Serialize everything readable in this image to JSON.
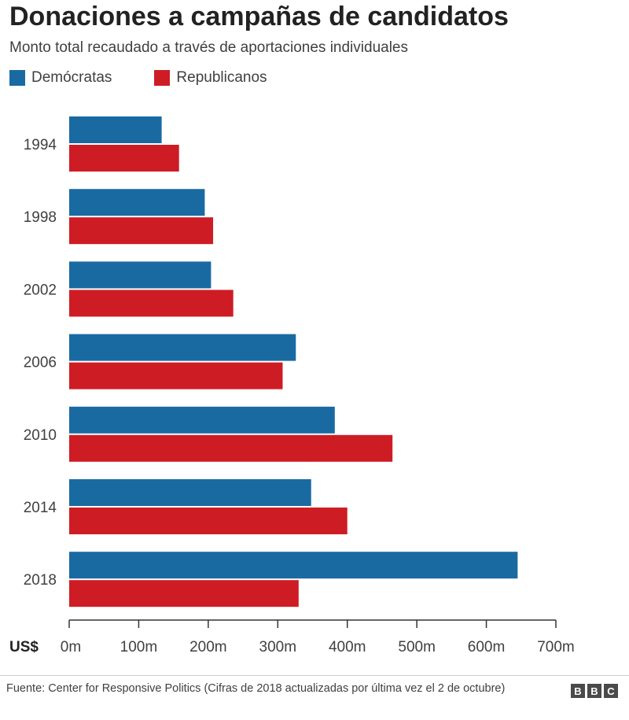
{
  "chart_data": {
    "type": "bar",
    "orientation": "horizontal",
    "title": "Donaciones a campañas de candidatos",
    "subtitle": "Monto total recaudado a través de aportaciones individuales",
    "categories": [
      "1994",
      "1998",
      "2002",
      "2006",
      "2010",
      "2014",
      "2018"
    ],
    "series": [
      {
        "name": "Demócratas",
        "color": "#1a6aa2",
        "values": [
          133,
          195,
          204,
          326,
          382,
          348,
          645
        ]
      },
      {
        "name": "Republicanos",
        "color": "#ce1c24",
        "values": [
          158,
          207,
          236,
          307,
          465,
          400,
          330
        ]
      }
    ],
    "xlim": [
      0,
      700
    ],
    "xticks": [
      0,
      100,
      200,
      300,
      400,
      500,
      600,
      700
    ],
    "xtick_labels": [
      "0m",
      "100m",
      "200m",
      "300m",
      "400m",
      "500m",
      "600m",
      "700m"
    ],
    "axis_unit_label": "US$",
    "legend_position": "top-left",
    "grid": false
  },
  "footer": {
    "source": "Fuente: Center for Responsive Politics (Cifras de 2018 actualizadas por última vez el 2 de octubre)",
    "logo_letters": [
      "B",
      "B",
      "C"
    ]
  }
}
